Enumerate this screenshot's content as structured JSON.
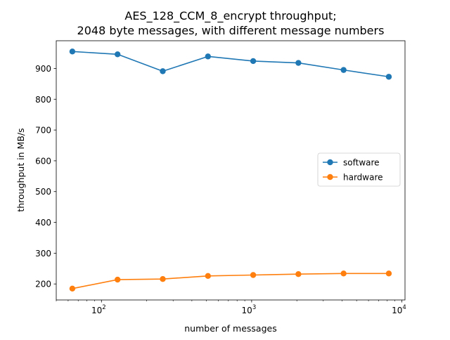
{
  "chart_data": {
    "type": "line",
    "title_lines": [
      "AES_128_CCM_8_encrypt throughput;",
      "2048 byte messages, with different message numbers"
    ],
    "xlabel": "number of messages",
    "ylabel": "throughput in MB/s",
    "xscale": "log",
    "xlim": [
      50,
      10500
    ],
    "ylim": [
      148,
      990
    ],
    "x_ticks": [
      {
        "value": 100,
        "base": "10",
        "exp": "2"
      },
      {
        "value": 1000,
        "base": "10",
        "exp": "3"
      },
      {
        "value": 10000,
        "base": "10",
        "exp": "4"
      }
    ],
    "y_ticks": [
      200,
      300,
      400,
      500,
      600,
      700,
      800,
      900
    ],
    "x": [
      64,
      128,
      256,
      512,
      1024,
      2048,
      4096,
      8192
    ],
    "series": [
      {
        "name": "software",
        "color": "#1f77b4",
        "values": [
          955,
          946,
          891,
          939,
          924,
          918,
          895,
          873
        ]
      },
      {
        "name": "hardware",
        "color": "#ff7f0e",
        "values": [
          185,
          214,
          216,
          226,
          229,
          232,
          234,
          234
        ]
      }
    ],
    "legend_position": "center-right",
    "grid": false
  }
}
